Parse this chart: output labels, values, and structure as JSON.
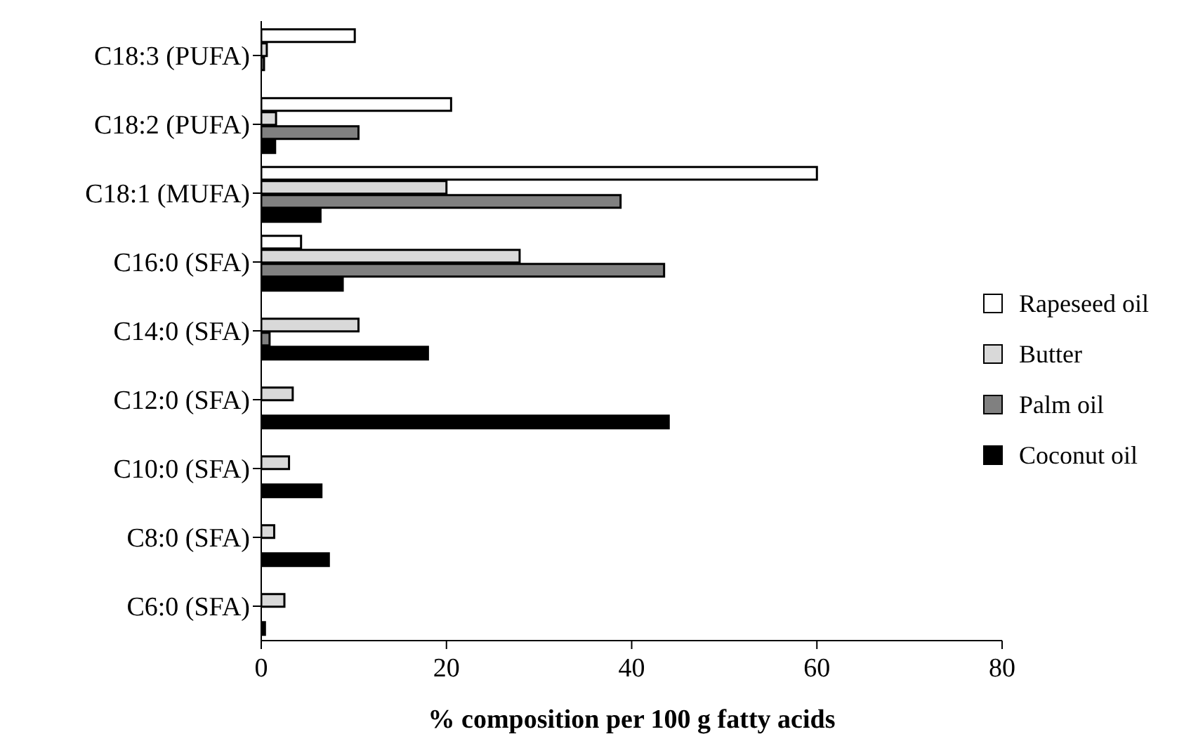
{
  "chart_data": {
    "type": "bar",
    "orientation": "horizontal",
    "xlabel": "% composition per 100 g fatty acids",
    "categories": [
      "C18:3 (PUFA)",
      "C18:2 (PUFA)",
      "C18:1 (MUFA)",
      "C16:0 (SFA)",
      "C14:0 (SFA)",
      "C12:0 (SFA)",
      "C10:0 (SFA)",
      "C8:0 (SFA)",
      "C6:0 (SFA)"
    ],
    "series": [
      {
        "name": "Rapeseed oil",
        "color": "#ffffff",
        "values": [
          10.1,
          20.5,
          60,
          4.3,
          0,
          0,
          0,
          0,
          0
        ]
      },
      {
        "name": "Butter",
        "color": "#d9d9d9",
        "values": [
          0.6,
          1.6,
          20,
          27.9,
          10.5,
          3.4,
          3,
          1.4,
          2.5
        ]
      },
      {
        "name": "Palm oil",
        "color": "#808080",
        "values": [
          0.3,
          10.5,
          38.8,
          43.5,
          0.9,
          0,
          0,
          0,
          0
        ]
      },
      {
        "name": "Coconut oil",
        "color": "#000000",
        "values": [
          0,
          1.5,
          6.4,
          8.8,
          18,
          44,
          6.5,
          7.3,
          0.4
        ]
      }
    ],
    "xlim": [
      0,
      80
    ],
    "xticks": [
      0,
      20,
      40,
      60,
      80
    ],
    "legend": "right"
  }
}
